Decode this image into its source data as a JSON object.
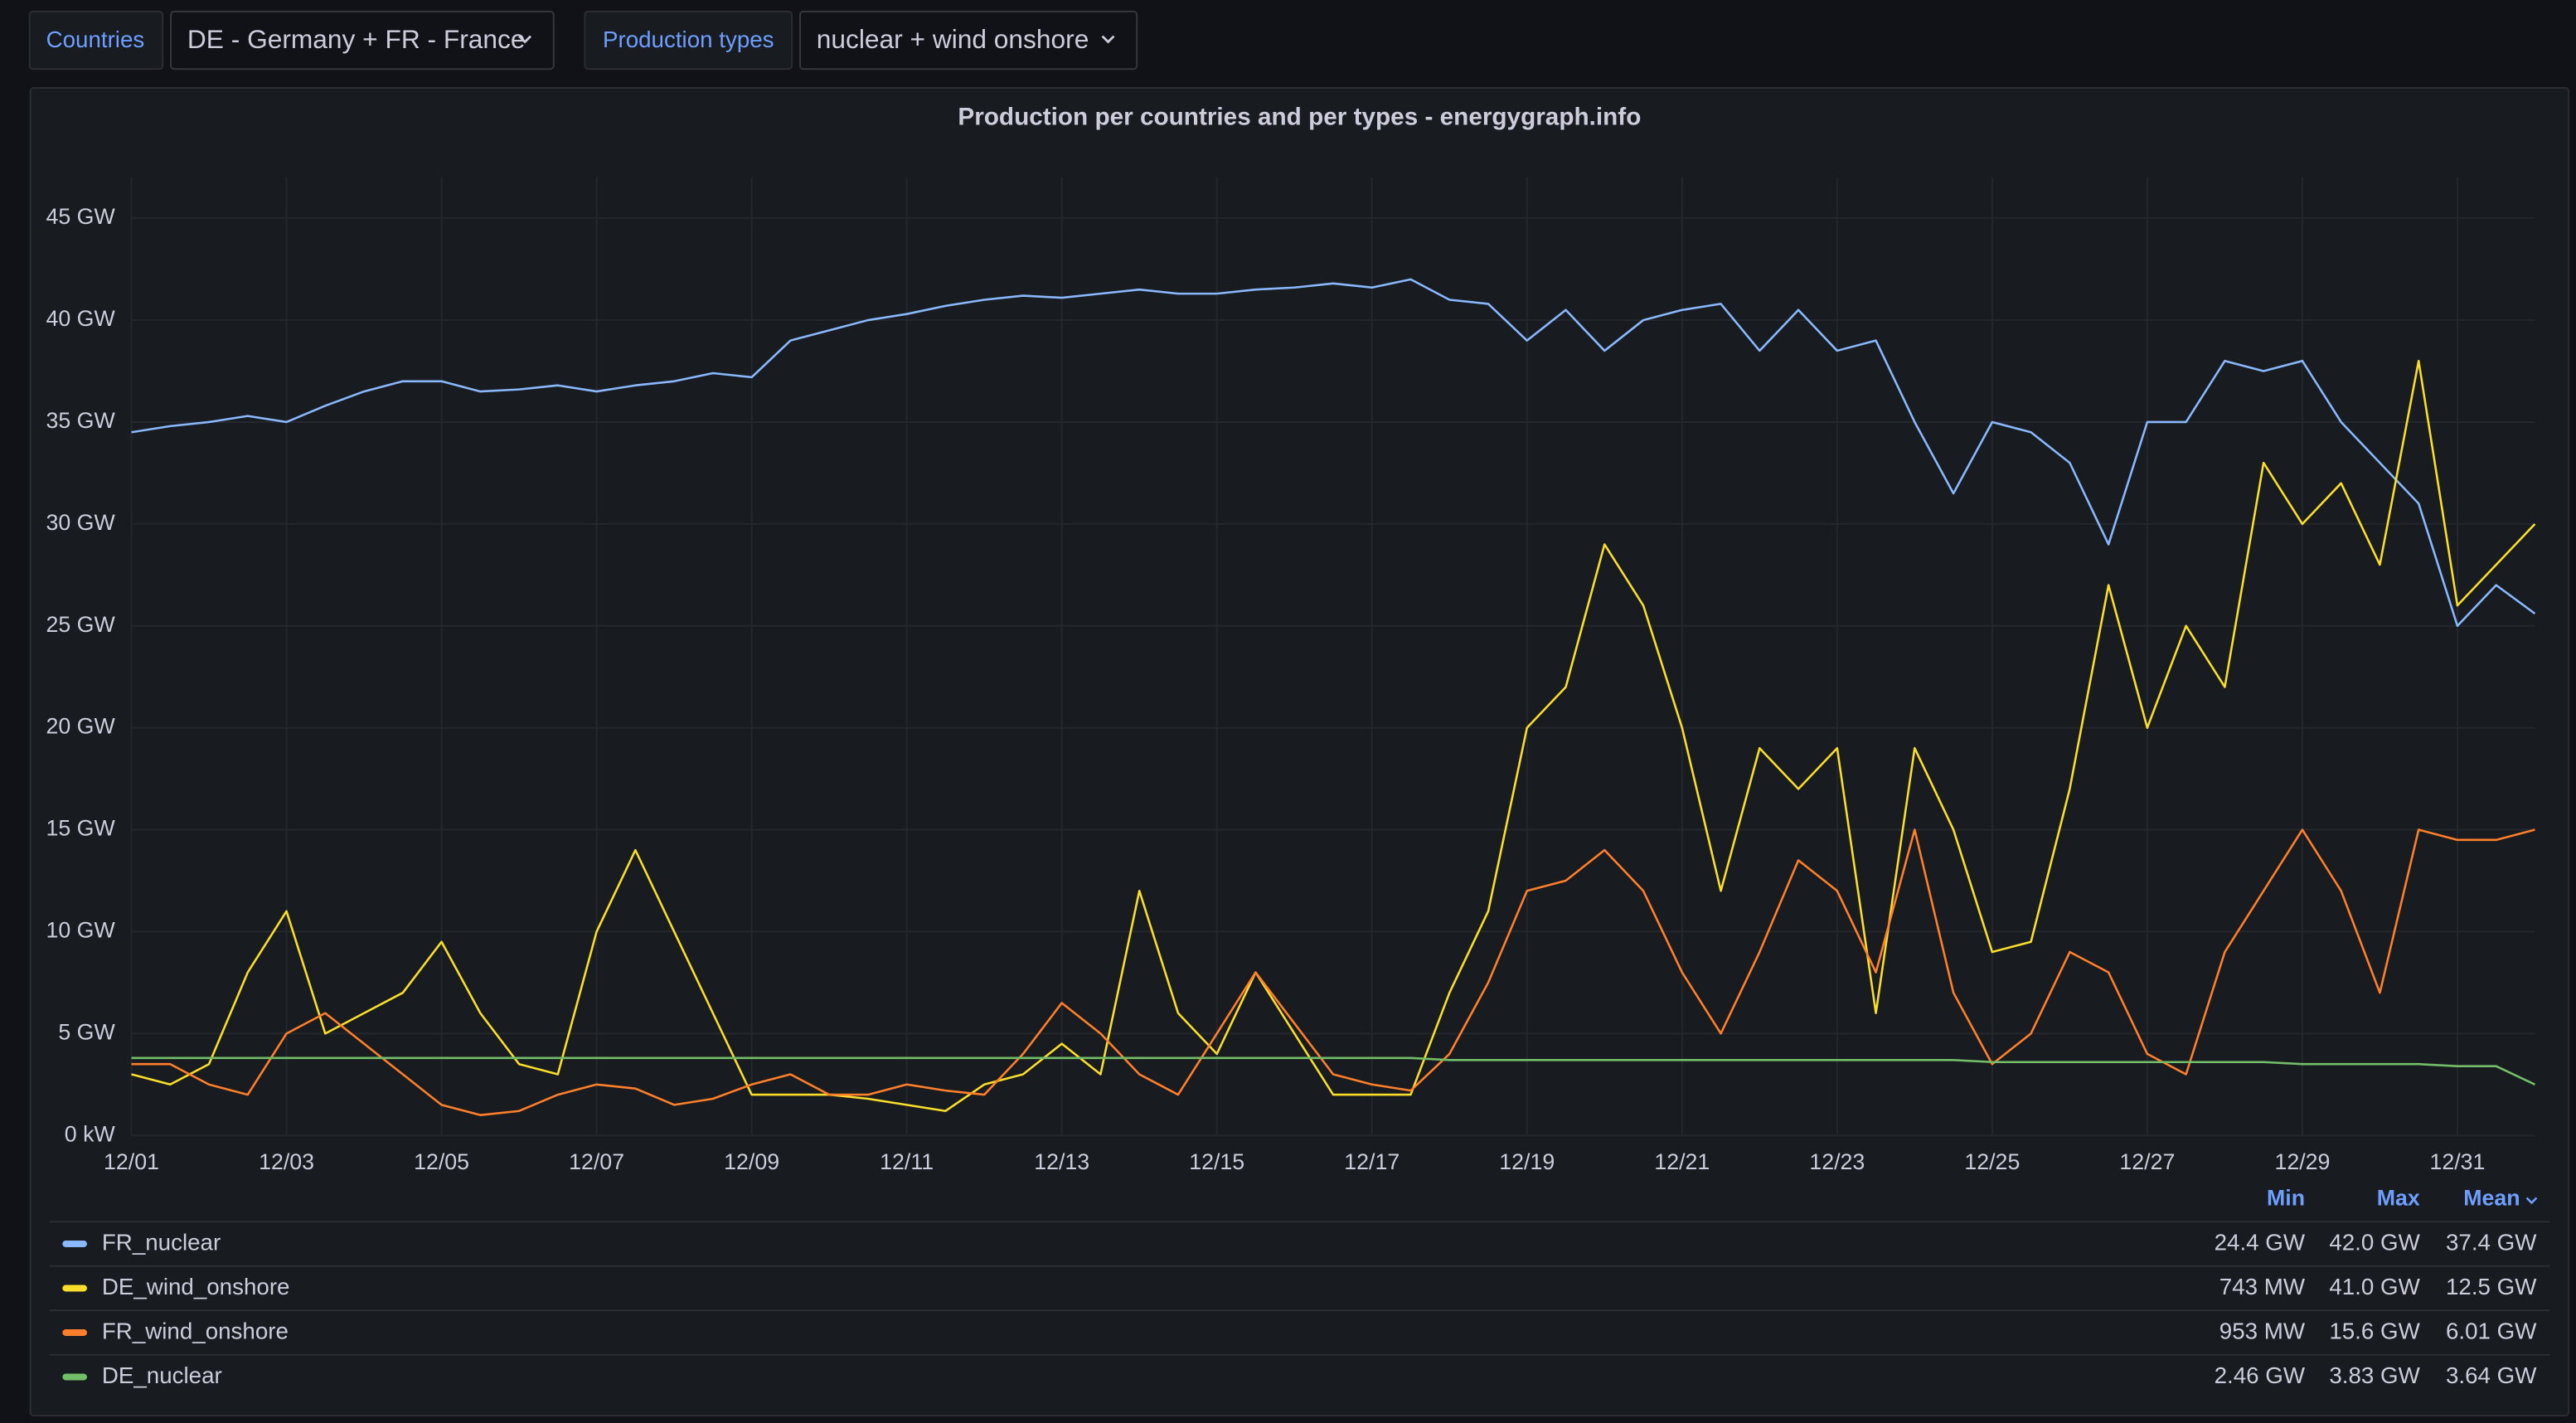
{
  "filters": [
    {
      "label": "Countries",
      "value": "DE - Germany + FR - France"
    },
    {
      "label": "Production types",
      "value": "nuclear + wind onshore"
    }
  ],
  "chart_data": {
    "type": "line",
    "title": "Production per countries and per types - energygraph.info",
    "x": [
      1,
      1.5,
      2,
      2.5,
      3,
      3.5,
      4,
      4.5,
      5,
      5.5,
      6,
      6.5,
      7,
      7.5,
      8,
      8.5,
      9,
      9.5,
      10,
      10.5,
      11,
      11.5,
      12,
      12.5,
      13,
      13.5,
      14,
      14.5,
      15,
      15.5,
      16,
      16.5,
      17,
      17.5,
      18,
      18.5,
      19,
      19.5,
      20,
      20.5,
      21,
      21.5,
      22,
      22.5,
      23,
      23.5,
      24,
      24.5,
      25,
      25.5,
      26,
      26.5,
      27,
      27.5,
      28,
      28.5,
      29,
      29.5,
      30,
      30.5,
      31,
      31.5,
      32
    ],
    "xlim": [
      1,
      32
    ],
    "xticks": [
      {
        "value": 1,
        "label": "12/01"
      },
      {
        "value": 3,
        "label": "12/03"
      },
      {
        "value": 5,
        "label": "12/05"
      },
      {
        "value": 7,
        "label": "12/07"
      },
      {
        "value": 9,
        "label": "12/09"
      },
      {
        "value": 11,
        "label": "12/11"
      },
      {
        "value": 13,
        "label": "12/13"
      },
      {
        "value": 15,
        "label": "12/15"
      },
      {
        "value": 17,
        "label": "12/17"
      },
      {
        "value": 19,
        "label": "12/19"
      },
      {
        "value": 21,
        "label": "12/21"
      },
      {
        "value": 23,
        "label": "12/23"
      },
      {
        "value": 25,
        "label": "12/25"
      },
      {
        "value": 27,
        "label": "12/27"
      },
      {
        "value": 29,
        "label": "12/29"
      },
      {
        "value": 31,
        "label": "12/31"
      }
    ],
    "ylim": [
      0,
      47
    ],
    "yticks": [
      {
        "value": 0,
        "label": "0 kW"
      },
      {
        "value": 5,
        "label": "5 GW"
      },
      {
        "value": 10,
        "label": "10 GW"
      },
      {
        "value": 15,
        "label": "15 GW"
      },
      {
        "value": 20,
        "label": "20 GW"
      },
      {
        "value": 25,
        "label": "25 GW"
      },
      {
        "value": 30,
        "label": "30 GW"
      },
      {
        "value": 35,
        "label": "35 GW"
      },
      {
        "value": 40,
        "label": "40 GW"
      },
      {
        "value": 45,
        "label": "45 GW"
      }
    ],
    "grid": true,
    "legend_position": "bottom",
    "legend_columns": [
      "Min",
      "Max",
      "Mean"
    ],
    "series": [
      {
        "name": "FR_nuclear",
        "color": "#8ab8ff",
        "stats": [
          "24.4 GW",
          "42.0 GW",
          "37.4 GW"
        ],
        "values": [
          34.5,
          34.8,
          35,
          35.3,
          35,
          35.8,
          36.5,
          37,
          37,
          36.5,
          36.6,
          36.8,
          36.5,
          36.8,
          37,
          37.4,
          37.2,
          39,
          39.5,
          40,
          40.3,
          40.7,
          41,
          41.2,
          41.1,
          41.3,
          41.5,
          41.3,
          41.3,
          41.5,
          41.6,
          41.8,
          41.6,
          42,
          41,
          40.8,
          39,
          40.5,
          38.5,
          40,
          40.5,
          40.8,
          38.5,
          40.5,
          38.5,
          39,
          35,
          31.5,
          35,
          34.5,
          33,
          29,
          35,
          35,
          38,
          37.5,
          38,
          35,
          33,
          31,
          25,
          27,
          25.6
        ]
      },
      {
        "name": "DE_wind_onshore",
        "color": "#fade2a",
        "stats": [
          "743 MW",
          "41.0 GW",
          "12.5 GW"
        ],
        "values": [
          3,
          2.5,
          3.5,
          8,
          11,
          5,
          6,
          7,
          9.5,
          6,
          3.5,
          3,
          10,
          14,
          10,
          6,
          2,
          2,
          2,
          1.8,
          1.5,
          1.2,
          2.5,
          3,
          4.5,
          3,
          12,
          6,
          4,
          8,
          5,
          2,
          2,
          2,
          7,
          11,
          20,
          22,
          29,
          26,
          20,
          12,
          19,
          17,
          19,
          6,
          19,
          15,
          9,
          9.5,
          17,
          27,
          20,
          25,
          22,
          33,
          30,
          32,
          28,
          38,
          26,
          28,
          30
        ]
      },
      {
        "name": "FR_wind_onshore",
        "color": "#ff7f2a",
        "stats": [
          "953 MW",
          "15.6 GW",
          "6.01 GW"
        ],
        "values": [
          3.5,
          3.5,
          2.5,
          2,
          5,
          6,
          4.5,
          3,
          1.5,
          1,
          1.2,
          2,
          2.5,
          2.3,
          1.5,
          1.8,
          2.5,
          3,
          2,
          2,
          2.5,
          2.2,
          2,
          4,
          6.5,
          5,
          3,
          2,
          5,
          8,
          5.5,
          3,
          2.5,
          2.2,
          4,
          7.5,
          12,
          12.5,
          14,
          12,
          8,
          5,
          9,
          13.5,
          12,
          8,
          15,
          7,
          3.5,
          5,
          9,
          8,
          4,
          3,
          9,
          12,
          15,
          12,
          7,
          15,
          14.5,
          14.5,
          15
        ]
      },
      {
        "name": "DE_nuclear",
        "color": "#73bf69",
        "stats": [
          "2.46 GW",
          "3.83 GW",
          "3.64 GW"
        ],
        "values": [
          3.8,
          3.8,
          3.8,
          3.8,
          3.8,
          3.8,
          3.8,
          3.8,
          3.8,
          3.8,
          3.8,
          3.8,
          3.8,
          3.8,
          3.8,
          3.8,
          3.8,
          3.8,
          3.8,
          3.8,
          3.8,
          3.8,
          3.8,
          3.8,
          3.8,
          3.8,
          3.8,
          3.8,
          3.8,
          3.8,
          3.8,
          3.8,
          3.8,
          3.8,
          3.7,
          3.7,
          3.7,
          3.7,
          3.7,
          3.7,
          3.7,
          3.7,
          3.7,
          3.7,
          3.7,
          3.7,
          3.7,
          3.7,
          3.6,
          3.6,
          3.6,
          3.6,
          3.6,
          3.6,
          3.6,
          3.6,
          3.5,
          3.5,
          3.5,
          3.5,
          3.4,
          3.4,
          2.5
        ]
      }
    ]
  }
}
